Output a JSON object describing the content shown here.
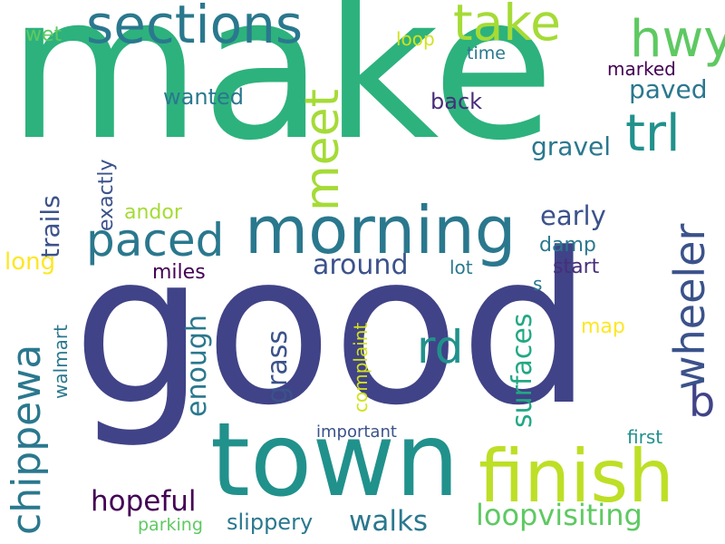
{
  "background": "#ffffff",
  "words": [
    {
      "id": "make",
      "text": "make",
      "color": "#2db27d"
    },
    {
      "id": "good",
      "text": "good",
      "color": "#404387"
    },
    {
      "id": "town",
      "text": "town",
      "color": "#21918c"
    },
    {
      "id": "morning",
      "text": "morning",
      "color": "#2a788e"
    },
    {
      "id": "finish",
      "text": "finish",
      "color": "#bddf26"
    },
    {
      "id": "sections",
      "text": "sections",
      "color": "#2a788e"
    },
    {
      "id": "take",
      "text": "take",
      "color": "#a5db36"
    },
    {
      "id": "hwy",
      "text": "hwy",
      "color": "#5ec962"
    },
    {
      "id": "trl",
      "text": "trl",
      "color": "#21918c"
    },
    {
      "id": "paced",
      "text": "paced",
      "color": "#2a788e"
    },
    {
      "id": "rd",
      "text": "rd",
      "color": "#21918c"
    },
    {
      "id": "meet",
      "text": "meet",
      "color": "#a5db36"
    },
    {
      "id": "wheeler",
      "text": "wheeler",
      "color": "#3b528b"
    },
    {
      "id": "chippewa",
      "text": "chippewa",
      "color": "#2a788e"
    },
    {
      "id": "b",
      "text": "b",
      "color": "#404387"
    },
    {
      "id": "loopvisiting",
      "text": "loopvisiting",
      "color": "#5ec962"
    },
    {
      "id": "hopeful",
      "text": "hopeful",
      "color": "#440154"
    },
    {
      "id": "walks",
      "text": "walks",
      "color": "#2a788e"
    },
    {
      "id": "around",
      "text": "around",
      "color": "#3b528b"
    },
    {
      "id": "surfaces",
      "text": "surfaces",
      "color": "#22a884"
    },
    {
      "id": "enough",
      "text": "enough",
      "color": "#2a788e"
    },
    {
      "id": "grass",
      "text": "grass",
      "color": "#3b528b"
    },
    {
      "id": "early",
      "text": "early",
      "color": "#3b528b"
    },
    {
      "id": "paved",
      "text": "paved",
      "color": "#2a788e"
    },
    {
      "id": "gravel",
      "text": "gravel",
      "color": "#2a788e"
    },
    {
      "id": "trails",
      "text": "trails",
      "color": "#3b528b"
    },
    {
      "id": "long",
      "text": "long",
      "color": "#fde725"
    },
    {
      "id": "sl",
      "text": "slippery",
      "color": "#2a788e"
    },
    {
      "id": "wanted",
      "text": "wanted",
      "color": "#2a788e"
    },
    {
      "id": "back",
      "text": "back",
      "color": "#472d7b"
    },
    {
      "id": "exactly",
      "text": "exactly",
      "color": "#3b528b"
    },
    {
      "id": "andor",
      "text": "andor",
      "color": "#a5db36"
    },
    {
      "id": "miles",
      "text": "miles",
      "color": "#440154"
    },
    {
      "id": "damp",
      "text": "damp",
      "color": "#2a788e"
    },
    {
      "id": "start",
      "text": "start",
      "color": "#472d7b"
    },
    {
      "id": "lot",
      "text": "lot",
      "color": "#2a788e"
    },
    {
      "id": "s",
      "text": "s",
      "color": "#2a788e"
    },
    {
      "id": "walmart",
      "text": "walmart",
      "color": "#2a788e"
    },
    {
      "id": "complaint",
      "text": "complaint",
      "color": "#d2e21b"
    },
    {
      "id": "map",
      "text": "map",
      "color": "#fde725"
    },
    {
      "id": "important",
      "text": "important",
      "color": "#3b528b"
    },
    {
      "id": "first",
      "text": "first",
      "color": "#21918c"
    },
    {
      "id": "parking",
      "text": "parking",
      "color": "#5ec962"
    },
    {
      "id": "wet",
      "text": "wet",
      "color": "#5ec962"
    },
    {
      "id": "loop",
      "text": "loop",
      "color": "#d2e21b"
    },
    {
      "id": "time",
      "text": "time",
      "color": "#2a788e"
    },
    {
      "id": "marked",
      "text": "marked",
      "color": "#440154"
    }
  ]
}
